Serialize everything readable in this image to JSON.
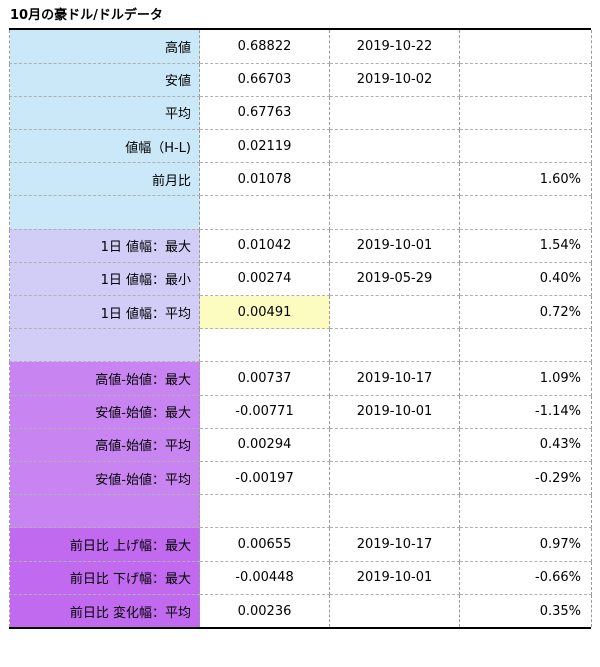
{
  "title": "10月の豪ドル/ドルデータ",
  "colors": {
    "blue_group": "#cbe8f8",
    "lavender_group": "#d2cdf7",
    "purple_group": "#c884f0",
    "magenta_group": "#c16af0",
    "highlight": "#fdfcc0",
    "up_green": "#18a048",
    "down_red": "#d41c1c"
  },
  "rows": [
    {
      "label": "高値",
      "value": "0.68822",
      "date": "2019-10-22",
      "pct": ""
    },
    {
      "label": "安値",
      "value": "0.66703",
      "date": "2019-10-02",
      "pct": ""
    },
    {
      "label": "平均",
      "value": "0.67763",
      "date": "",
      "pct": ""
    },
    {
      "label": "値幅（H-L)",
      "value": "0.02119",
      "date": "",
      "pct": ""
    },
    {
      "label": "前月比",
      "value": "0.01078",
      "date": "",
      "pct": "1.60%"
    },
    {
      "label": "",
      "value": "",
      "date": "",
      "pct": ""
    },
    {
      "label": "1日 値幅：最大",
      "value": "0.01042",
      "date": "2019-10-01",
      "pct": "1.54%"
    },
    {
      "label": "1日 値幅：最小",
      "value": "0.00274",
      "date": "2019-05-29",
      "pct": "0.40%"
    },
    {
      "label": "1日 値幅：平均",
      "value": "0.00491",
      "date": "",
      "pct": "0.72%"
    },
    {
      "label": "",
      "value": "",
      "date": "",
      "pct": ""
    },
    {
      "label": "高値-始値：最大",
      "value": "0.00737",
      "date": "2019-10-17",
      "pct": "1.09%"
    },
    {
      "label": "安値-始値：最大",
      "value": "-0.00771",
      "date": "2019-10-01",
      "pct": "-1.14%"
    },
    {
      "label": "高値-始値：平均",
      "value": "0.00294",
      "date": "",
      "pct": "0.43%"
    },
    {
      "label": "安値-始値：平均",
      "value": "-0.00197",
      "date": "",
      "pct": "-0.29%"
    },
    {
      "label": "",
      "value": "",
      "date": "",
      "pct": ""
    },
    {
      "label": "前日比 上げ幅：最大",
      "value": "0.00655",
      "date": "2019-10-17",
      "pct": "0.97%"
    },
    {
      "label": "前日比 下げ幅：最大",
      "value": "-0.00448",
      "date": "2019-10-01",
      "pct": "-0.66%"
    },
    {
      "label": "前日比 変化幅：平均",
      "value": "0.00236",
      "date": "",
      "pct": "0.35%"
    }
  ]
}
